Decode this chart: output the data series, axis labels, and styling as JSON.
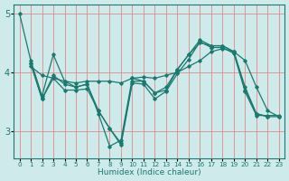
{
  "xlabel": "Humidex (Indice chaleur)",
  "ylabel": "",
  "xlim": [
    -0.5,
    23.5
  ],
  "ylim": [
    2.55,
    5.15
  ],
  "yticks": [
    3,
    4,
    5
  ],
  "xticks": [
    0,
    1,
    2,
    3,
    4,
    5,
    6,
    7,
    8,
    9,
    10,
    11,
    12,
    13,
    14,
    15,
    16,
    17,
    18,
    19,
    20,
    21,
    22,
    23
  ],
  "background_color": "#ceeaea",
  "grid_color": "#e08888",
  "line_color": "#1a7a70",
  "lines": [
    {
      "x": [
        0,
        1,
        2,
        3,
        4,
        5,
        6,
        7,
        8,
        9,
        10,
        11,
        12,
        13,
        14,
        15,
        16,
        17,
        18,
        19,
        20,
        21,
        22
      ],
      "y": [
        5.0,
        4.2,
        3.6,
        4.3,
        3.85,
        3.75,
        3.8,
        3.3,
        2.75,
        2.85,
        3.9,
        3.85,
        3.65,
        3.7,
        4.05,
        4.3,
        4.5,
        4.45,
        4.45,
        4.35,
        3.75,
        3.3,
        3.25
      ]
    },
    {
      "x": [
        1,
        2,
        3,
        4,
        5,
        6,
        7,
        8,
        9,
        10,
        11,
        12,
        13,
        14,
        15,
        16,
        17,
        18,
        19,
        20,
        21,
        22,
        23
      ],
      "y": [
        4.15,
        3.55,
        3.95,
        3.8,
        3.75,
        3.8,
        3.35,
        3.05,
        2.8,
        3.85,
        3.85,
        3.65,
        3.75,
        4.05,
        4.3,
        4.55,
        4.45,
        4.45,
        4.35,
        3.7,
        3.3,
        3.25,
        3.25
      ]
    },
    {
      "x": [
        1,
        2,
        3,
        4,
        5,
        6,
        7,
        8,
        9,
        10,
        11,
        12,
        13,
        14,
        15,
        16,
        17,
        18,
        19,
        20,
        21,
        22,
        23
      ],
      "y": [
        4.1,
        3.95,
        3.9,
        3.85,
        3.82,
        3.85,
        3.85,
        3.85,
        3.82,
        3.9,
        3.92,
        3.9,
        3.95,
        4.0,
        4.1,
        4.2,
        4.35,
        4.4,
        4.35,
        4.2,
        3.75,
        3.35,
        3.25
      ]
    },
    {
      "x": [
        1,
        2,
        3,
        4,
        5,
        6,
        7,
        8,
        9,
        10,
        11,
        12,
        13,
        14,
        15,
        16,
        17,
        18,
        19,
        20,
        21,
        22,
        23
      ],
      "y": [
        4.15,
        3.55,
        3.9,
        3.7,
        3.7,
        3.72,
        3.35,
        3.05,
        2.77,
        3.82,
        3.8,
        3.55,
        3.68,
        3.98,
        4.22,
        4.52,
        4.42,
        4.42,
        4.32,
        3.67,
        3.27,
        3.27,
        3.27
      ]
    }
  ]
}
